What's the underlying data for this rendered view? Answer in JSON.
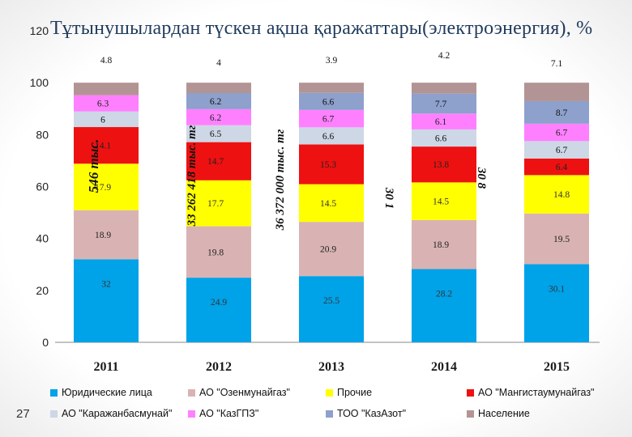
{
  "slide": {
    "title": "Тұтынушылардан түскен ақша қаражаттары(электроэнергия), %",
    "page_number": "27"
  },
  "chart_data": {
    "type": "bar",
    "stacked": true,
    "title": "Тұтынушылардан түскен ақша қаражаттары(электроэнергия), %",
    "categories": [
      "2011",
      "2012",
      "2013",
      "2014",
      "2015"
    ],
    "ylim": [
      0,
      120
    ],
    "yticks": [
      0,
      20,
      40,
      60,
      80,
      100,
      120
    ],
    "series": [
      {
        "name": "Юридические лица",
        "color": "#00a2e8",
        "values": [
          32,
          24.9,
          25.5,
          28.2,
          30.1
        ]
      },
      {
        "name": "АО \"Озенмунайгаз\"",
        "color": "#d9b3b3",
        "values": [
          18.9,
          19.8,
          20.9,
          18.9,
          19.5
        ]
      },
      {
        "name": "Прочие",
        "color": "#ffff00",
        "values": [
          17.9,
          17.7,
          14.5,
          14.5,
          14.8
        ]
      },
      {
        "name": "АО \"Мангистаумунайгаз\"",
        "color": "#ee1111",
        "values": [
          14.1,
          14.7,
          15.3,
          13.8,
          6.4
        ]
      },
      {
        "name": "АО \"Каражанбасмунай\"",
        "color": "#cdd7e6",
        "values": [
          6,
          6.5,
          6.6,
          6.6,
          6.7
        ]
      },
      {
        "name": "АО \"КазГПЗ\"",
        "color": "#ff80ff",
        "values": [
          6.3,
          6.2,
          6.7,
          6.1,
          6.7
        ]
      },
      {
        "name": "ТОО \"КазАзот\"",
        "color": "#8ea0cc",
        "values": [
          0,
          6.2,
          6.6,
          7.7,
          8.7
        ]
      },
      {
        "name": "Население",
        "color": "#b39494",
        "values": [
          4.8,
          4,
          3.9,
          4.2,
          7.1
        ]
      }
    ],
    "data_labels": {
      "2011": [
        "32",
        "18.9",
        "17.9",
        "14.1",
        "6",
        "6.3",
        "",
        "4.8"
      ],
      "2012": [
        "24.9",
        "19.8",
        "17.7",
        "14.7",
        "6.5",
        "6.2",
        "6.2",
        "4"
      ],
      "2013": [
        "25.5",
        "20.9",
        "14.5",
        "15.3",
        "6.6",
        "6.7",
        "6.6",
        "3.9"
      ],
      "2014": [
        "28.2",
        "18.9",
        "14.5",
        "13.8",
        "6.6",
        "6.1",
        "7.7",
        "4.2"
      ],
      "2015": [
        "30.1",
        "19.5",
        "14.8",
        "6.4",
        "6.7",
        "6.7",
        "8.7",
        "7.1"
      ]
    },
    "annotations": [
      {
        "category": "2011",
        "text": "546 тыс."
      },
      {
        "category": "2012",
        "text": "33 262 418 тыс. тг"
      },
      {
        "category": "2013",
        "text": "36 372 000 тыс. тг"
      },
      {
        "category": "2014",
        "text": "30 1"
      },
      {
        "category": "2015",
        "text": "30 8"
      }
    ],
    "legend": "bottom"
  }
}
